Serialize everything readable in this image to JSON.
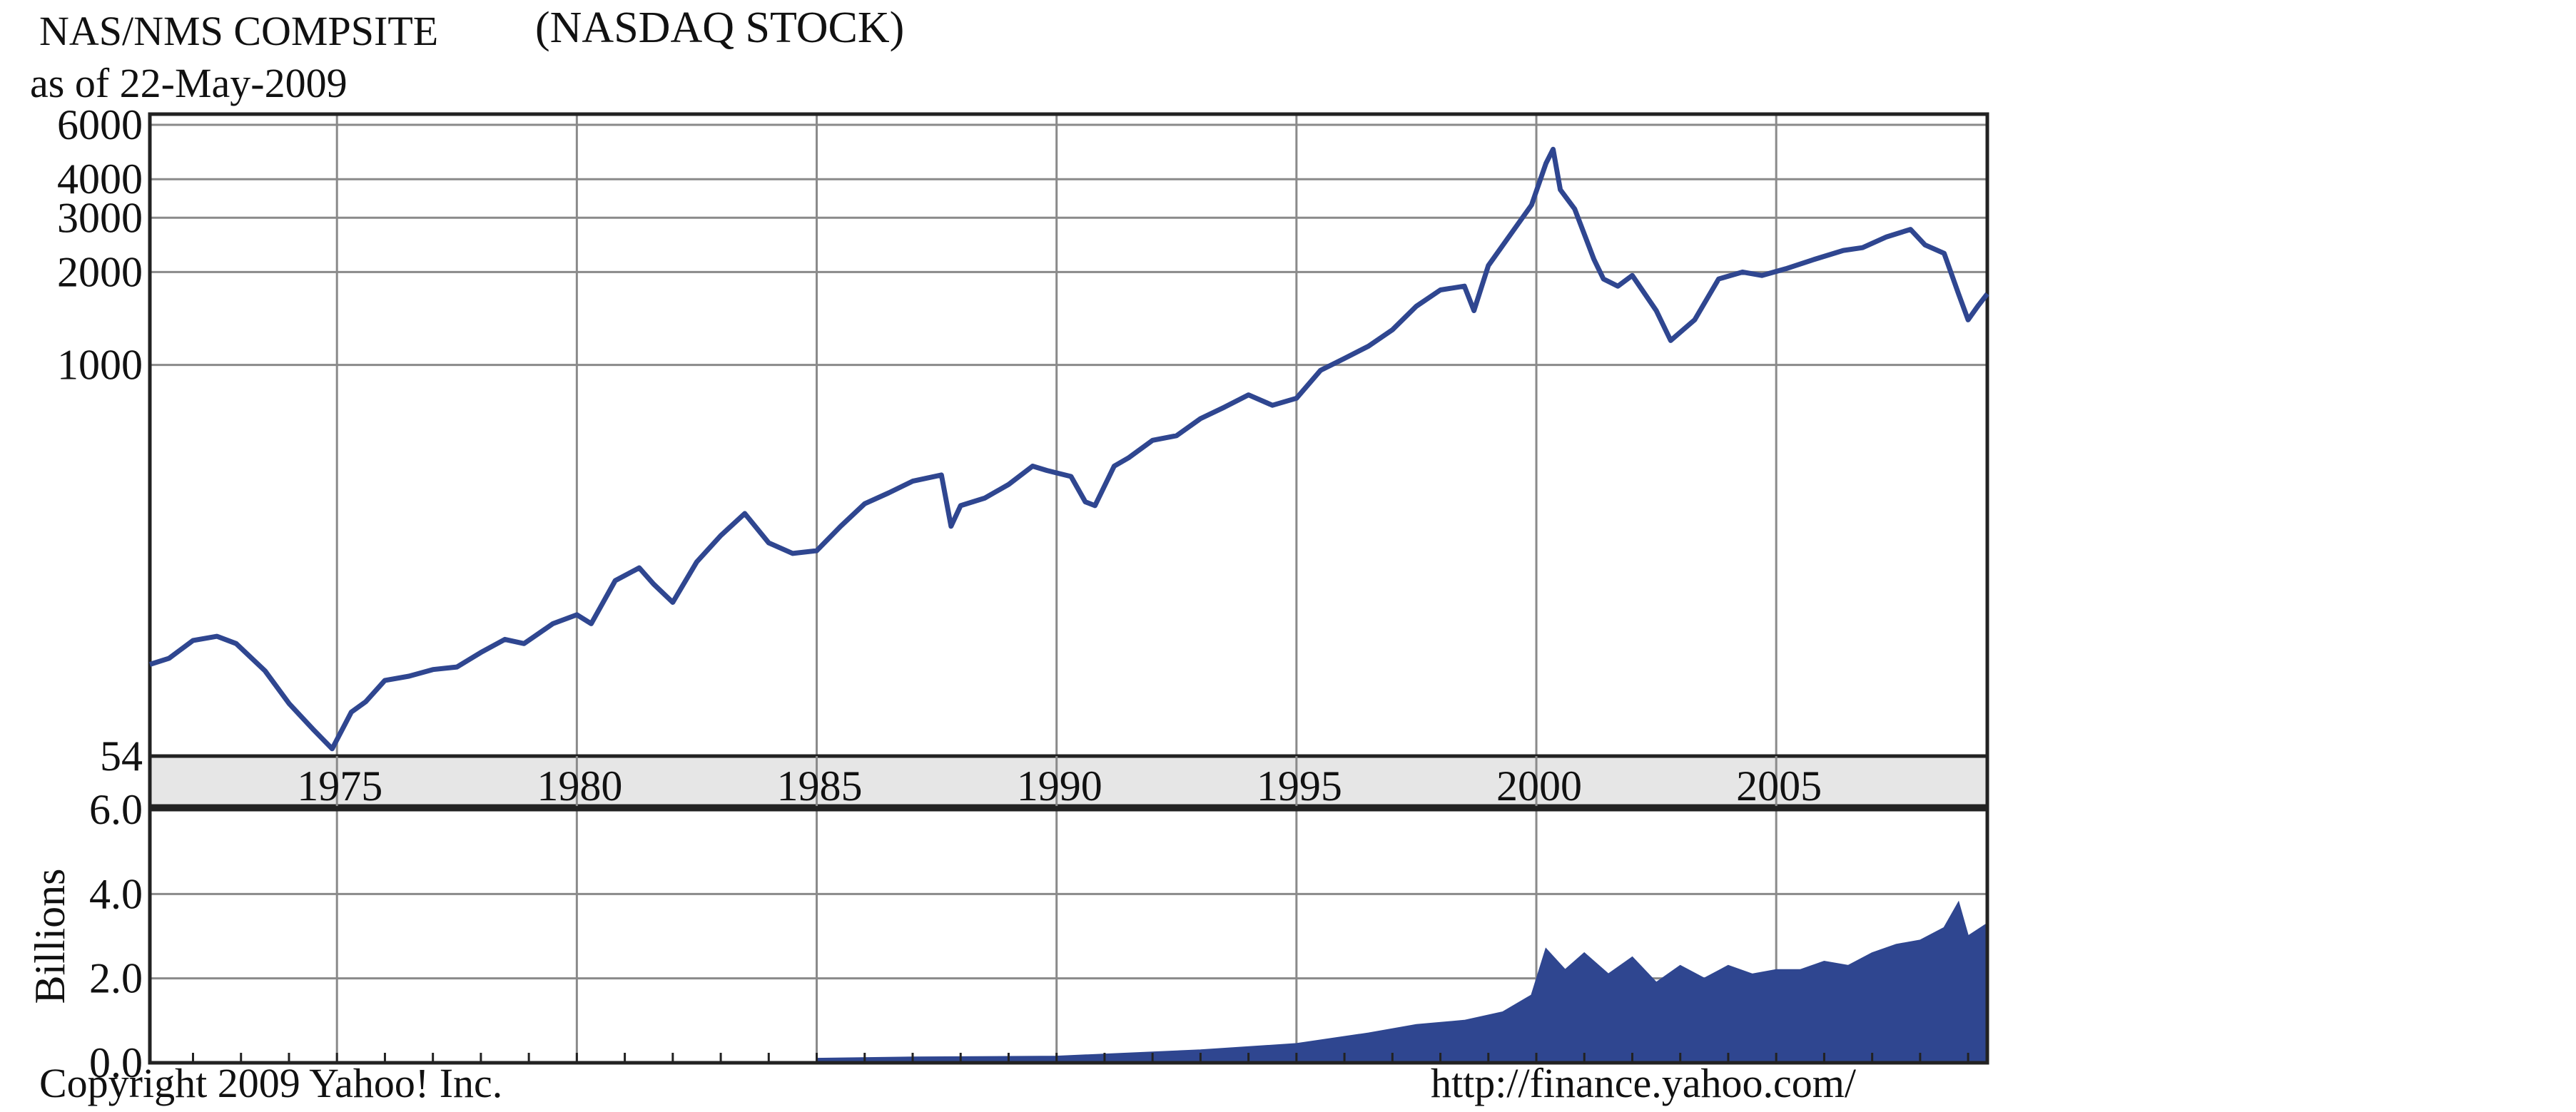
{
  "header": {
    "title_part1": "NAS/NMS COMPSITE",
    "title_part2": "(NASDAQ STOCK)",
    "subtitle": "as of 22-May-2009"
  },
  "footer": {
    "copyright": "Copyright 2009 Yahoo! Inc.",
    "url": "http://finance.yahoo.com/"
  },
  "colors": {
    "series": "#2f4690",
    "grid": "#8a8a8a",
    "axis_band": "#e6e6e6",
    "frame": "#222222"
  },
  "chart_data": [
    {
      "type": "line",
      "title": "NAS/NMS COMPSITE (NASDAQ STOCK)",
      "subtitle": "as of 22-May-2009",
      "xlabel": "",
      "ylabel": "",
      "scale": "log",
      "xlim": [
        1971.1,
        2009.4
      ],
      "ylim": [
        54,
        6500
      ],
      "yticks": [
        54,
        1000,
        2000,
        3000,
        4000,
        6000
      ],
      "xticks": [
        1975,
        1980,
        1985,
        1990,
        1995,
        2000,
        2005
      ],
      "grid": true,
      "series": [
        {
          "x": [
            1971.1,
            1971.5,
            1972.0,
            1972.5,
            1972.9,
            1973.5,
            1974.0,
            1974.5,
            1974.9,
            1975.3,
            1975.6,
            1976.0,
            1976.5,
            1977.0,
            1977.5,
            1978.0,
            1978.5,
            1978.9,
            1979.5,
            1980.0,
            1980.3,
            1980.8,
            1981.3,
            1981.6,
            1982.0,
            1982.5,
            1983.0,
            1983.5,
            1984.0,
            1984.5,
            1985.0,
            1985.5,
            1986.0,
            1986.5,
            1987.0,
            1987.6,
            1987.8,
            1988.0,
            1988.5,
            1989.0,
            1989.5,
            1989.8,
            1990.3,
            1990.6,
            1990.8,
            1991.2,
            1991.5,
            1992.0,
            1992.5,
            1993.0,
            1993.5,
            1994.0,
            1994.5,
            1995.0,
            1995.5,
            1996.0,
            1996.5,
            1997.0,
            1997.5,
            1998.0,
            1998.5,
            1998.7,
            1999.0,
            1999.5,
            1999.9,
            2000.2,
            2000.35,
            2000.5,
            2000.8,
            2001.2,
            2001.4,
            2001.7,
            2002.0,
            2002.5,
            2002.8,
            2003.3,
            2003.8,
            2004.3,
            2004.7,
            2005.2,
            2005.8,
            2006.4,
            2006.8,
            2007.3,
            2007.8,
            2008.1,
            2008.5,
            2008.8,
            2009.0,
            2009.2,
            2009.4
          ],
          "y": [
            107,
            112,
            128,
            132,
            125,
            102,
            80,
            66,
            57,
            75,
            81,
            95,
            98,
            103,
            105,
            117,
            129,
            125,
            145,
            155,
            145,
            200,
            220,
            195,
            170,
            230,
            280,
            330,
            265,
            245,
            250,
            300,
            355,
            385,
            420,
            440,
            300,
            350,
            370,
            410,
            470,
            455,
            435,
            360,
            350,
            470,
            500,
            570,
            590,
            670,
            730,
            800,
            740,
            780,
            960,
            1050,
            1150,
            1300,
            1550,
            1750,
            1800,
            1500,
            2100,
            2700,
            3300,
            4500,
            5000,
            3700,
            3200,
            2200,
            1900,
            1800,
            1950,
            1500,
            1200,
            1400,
            1900,
            2000,
            1950,
            2050,
            2200,
            2350,
            2400,
            2600,
            2750,
            2450,
            2300,
            1700,
            1400,
            1550,
            1700
          ]
        }
      ]
    },
    {
      "type": "area",
      "title": "",
      "xlabel": "",
      "ylabel": "Billions",
      "xlim": [
        1971.1,
        2009.4
      ],
      "ylim": [
        0,
        6
      ],
      "yticks": [
        "0.0",
        "2.0",
        "4.0",
        "6.0"
      ],
      "grid": true,
      "series": [
        {
          "x": [
            1985.0,
            1987.0,
            1990.0,
            1993.0,
            1995.0,
            1996.5,
            1997.5,
            1998.5,
            1999.3,
            1999.9,
            2000.2,
            2000.6,
            2001.0,
            2001.5,
            2002.0,
            2002.5,
            2003.0,
            2003.5,
            2004.0,
            2004.5,
            2005.0,
            2005.5,
            2006.0,
            2006.5,
            2007.0,
            2007.5,
            2008.0,
            2008.5,
            2008.8,
            2009.0,
            2009.4
          ],
          "y": [
            0.1,
            0.13,
            0.15,
            0.3,
            0.45,
            0.7,
            0.9,
            1.0,
            1.2,
            1.6,
            2.7,
            2.2,
            2.6,
            2.1,
            2.5,
            1.9,
            2.3,
            2.0,
            2.3,
            2.1,
            2.2,
            2.2,
            2.4,
            2.3,
            2.6,
            2.8,
            2.9,
            3.2,
            3.8,
            3.0,
            3.3
          ]
        }
      ]
    }
  ]
}
